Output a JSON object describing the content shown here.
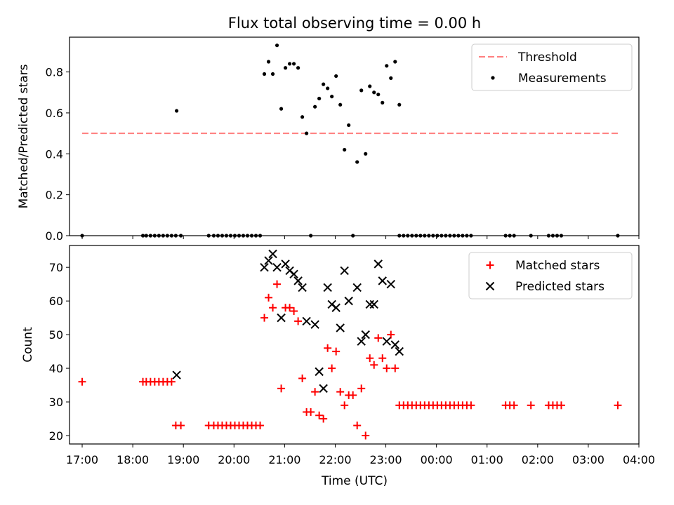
{
  "title": "Flux total observing time = 0.00 h",
  "xlabel": "Time (UTC)",
  "x_ticks": [
    "17:00",
    "18:00",
    "19:00",
    "20:00",
    "21:00",
    "22:00",
    "23:00",
    "00:00",
    "01:00",
    "02:00",
    "03:00",
    "04:00"
  ],
  "chart_data": [
    {
      "type": "scatter",
      "ylabel": "Matched/Predicted stars",
      "ylim": [
        0,
        0.97
      ],
      "y_ticks": [
        0.0,
        0.2,
        0.4,
        0.6,
        0.8
      ],
      "y_tick_labels": [
        "0.0",
        "0.2",
        "0.4",
        "0.6",
        "0.8"
      ],
      "xlim": [
        "16:45",
        "04:00"
      ],
      "legend_position": "top-right",
      "grid": false,
      "series": [
        {
          "name": "Threshold",
          "kind": "dashed-line",
          "color": "#ff7f7f",
          "points": [
            [
              "17:00",
              0.5
            ],
            [
              "03:35",
              0.5
            ]
          ]
        },
        {
          "name": "Measurements",
          "kind": "dots",
          "color": "#000000",
          "points": [
            [
              "17:00",
              0.0
            ],
            [
              "18:12",
              0.0
            ],
            [
              "18:16",
              0.0
            ],
            [
              "18:21",
              0.0
            ],
            [
              "18:26",
              0.0
            ],
            [
              "18:31",
              0.0
            ],
            [
              "18:36",
              0.0
            ],
            [
              "18:41",
              0.0
            ],
            [
              "18:46",
              0.0
            ],
            [
              "18:51",
              0.0
            ],
            [
              "18:52",
              0.61
            ],
            [
              "18:57",
              0.0
            ],
            [
              "19:30",
              0.0
            ],
            [
              "19:36",
              0.0
            ],
            [
              "19:41",
              0.0
            ],
            [
              "19:46",
              0.0
            ],
            [
              "19:51",
              0.0
            ],
            [
              "19:56",
              0.0
            ],
            [
              "20:01",
              0.0
            ],
            [
              "20:06",
              0.0
            ],
            [
              "20:11",
              0.0
            ],
            [
              "20:16",
              0.0
            ],
            [
              "20:21",
              0.0
            ],
            [
              "20:26",
              0.0
            ],
            [
              "20:31",
              0.0
            ],
            [
              "20:36",
              0.79
            ],
            [
              "20:41",
              0.85
            ],
            [
              "20:46",
              0.79
            ],
            [
              "20:51",
              0.93
            ],
            [
              "20:56",
              0.62
            ],
            [
              "21:01",
              0.82
            ],
            [
              "21:06",
              0.84
            ],
            [
              "21:11",
              0.84
            ],
            [
              "21:16",
              0.82
            ],
            [
              "21:21",
              0.58
            ],
            [
              "21:26",
              0.5
            ],
            [
              "21:31",
              0.0
            ],
            [
              "21:36",
              0.63
            ],
            [
              "21:41",
              0.67
            ],
            [
              "21:46",
              0.74
            ],
            [
              "21:51",
              0.72
            ],
            [
              "21:56",
              0.68
            ],
            [
              "22:01",
              0.78
            ],
            [
              "22:06",
              0.64
            ],
            [
              "22:11",
              0.42
            ],
            [
              "22:16",
              0.54
            ],
            [
              "22:21",
              0.0
            ],
            [
              "22:26",
              0.36
            ],
            [
              "22:31",
              0.71
            ],
            [
              "22:36",
              0.4
            ],
            [
              "22:41",
              0.73
            ],
            [
              "22:46",
              0.7
            ],
            [
              "22:51",
              0.69
            ],
            [
              "22:56",
              0.65
            ],
            [
              "23:01",
              0.83
            ],
            [
              "23:06",
              0.77
            ],
            [
              "23:11",
              0.85
            ],
            [
              "23:16",
              0.64
            ],
            [
              "23:16",
              0.0
            ],
            [
              "23:21",
              0.0
            ],
            [
              "23:26",
              0.0
            ],
            [
              "23:31",
              0.0
            ],
            [
              "23:36",
              0.0
            ],
            [
              "23:41",
              0.0
            ],
            [
              "23:46",
              0.0
            ],
            [
              "23:51",
              0.0
            ],
            [
              "23:56",
              0.0
            ],
            [
              "00:01",
              0.0
            ],
            [
              "00:06",
              0.0
            ],
            [
              "00:11",
              0.0
            ],
            [
              "00:16",
              0.0
            ],
            [
              "00:21",
              0.0
            ],
            [
              "00:26",
              0.0
            ],
            [
              "00:31",
              0.0
            ],
            [
              "00:36",
              0.0
            ],
            [
              "00:41",
              0.0
            ],
            [
              "01:22",
              0.0
            ],
            [
              "01:27",
              0.0
            ],
            [
              "01:32",
              0.0
            ],
            [
              "01:52",
              0.0
            ],
            [
              "02:13",
              0.0
            ],
            [
              "02:18",
              0.0
            ],
            [
              "02:23",
              0.0
            ],
            [
              "02:28",
              0.0
            ],
            [
              "03:35",
              0.0
            ]
          ]
        }
      ]
    },
    {
      "type": "scatter",
      "ylabel": "Count",
      "ylim": [
        17.5,
        76.5
      ],
      "y_ticks": [
        20,
        30,
        40,
        50,
        60,
        70
      ],
      "y_tick_labels": [
        "20",
        "30",
        "40",
        "50",
        "60",
        "70"
      ],
      "xlim": [
        "16:45",
        "04:00"
      ],
      "legend_position": "top-right",
      "grid": false,
      "series": [
        {
          "name": "Matched stars",
          "kind": "plus",
          "color": "#ff0000",
          "points": [
            [
              "17:00",
              36
            ],
            [
              "18:12",
              36
            ],
            [
              "18:16",
              36
            ],
            [
              "18:21",
              36
            ],
            [
              "18:26",
              36
            ],
            [
              "18:31",
              36
            ],
            [
              "18:36",
              36
            ],
            [
              "18:41",
              36
            ],
            [
              "18:46",
              36
            ],
            [
              "18:51",
              23
            ],
            [
              "18:57",
              23
            ],
            [
              "19:30",
              23
            ],
            [
              "19:36",
              23
            ],
            [
              "19:41",
              23
            ],
            [
              "19:46",
              23
            ],
            [
              "19:51",
              23
            ],
            [
              "19:56",
              23
            ],
            [
              "20:01",
              23
            ],
            [
              "20:06",
              23
            ],
            [
              "20:11",
              23
            ],
            [
              "20:16",
              23
            ],
            [
              "20:21",
              23
            ],
            [
              "20:26",
              23
            ],
            [
              "20:31",
              23
            ],
            [
              "20:36",
              55
            ],
            [
              "20:41",
              61
            ],
            [
              "20:46",
              58
            ],
            [
              "20:51",
              65
            ],
            [
              "20:56",
              34
            ],
            [
              "21:01",
              58
            ],
            [
              "21:06",
              58
            ],
            [
              "21:11",
              57
            ],
            [
              "21:16",
              54
            ],
            [
              "21:21",
              37
            ],
            [
              "21:26",
              27
            ],
            [
              "21:31",
              27
            ],
            [
              "21:36",
              33
            ],
            [
              "21:41",
              26
            ],
            [
              "21:46",
              25
            ],
            [
              "21:51",
              46
            ],
            [
              "21:56",
              40
            ],
            [
              "22:01",
              45
            ],
            [
              "22:06",
              33
            ],
            [
              "22:11",
              29
            ],
            [
              "22:16",
              32
            ],
            [
              "22:21",
              32
            ],
            [
              "22:26",
              23
            ],
            [
              "22:31",
              34
            ],
            [
              "22:36",
              20
            ],
            [
              "22:41",
              43
            ],
            [
              "22:46",
              41
            ],
            [
              "22:51",
              49
            ],
            [
              "22:56",
              43
            ],
            [
              "23:01",
              40
            ],
            [
              "23:06",
              50
            ],
            [
              "23:11",
              40
            ],
            [
              "23:16",
              29
            ],
            [
              "23:21",
              29
            ],
            [
              "23:26",
              29
            ],
            [
              "23:31",
              29
            ],
            [
              "23:36",
              29
            ],
            [
              "23:41",
              29
            ],
            [
              "23:46",
              29
            ],
            [
              "23:51",
              29
            ],
            [
              "23:56",
              29
            ],
            [
              "00:01",
              29
            ],
            [
              "00:06",
              29
            ],
            [
              "00:11",
              29
            ],
            [
              "00:16",
              29
            ],
            [
              "00:21",
              29
            ],
            [
              "00:26",
              29
            ],
            [
              "00:31",
              29
            ],
            [
              "00:36",
              29
            ],
            [
              "00:41",
              29
            ],
            [
              "01:22",
              29
            ],
            [
              "01:27",
              29
            ],
            [
              "01:32",
              29
            ],
            [
              "01:52",
              29
            ],
            [
              "02:13",
              29
            ],
            [
              "02:18",
              29
            ],
            [
              "02:23",
              29
            ],
            [
              "02:28",
              29
            ],
            [
              "03:35",
              29
            ]
          ]
        },
        {
          "name": "Predicted stars",
          "kind": "cross",
          "color": "#000000",
          "points": [
            [
              "18:52",
              38
            ],
            [
              "20:36",
              70
            ],
            [
              "20:41",
              72
            ],
            [
              "20:46",
              74
            ],
            [
              "20:51",
              70
            ],
            [
              "20:56",
              55
            ],
            [
              "21:01",
              71
            ],
            [
              "21:06",
              69
            ],
            [
              "21:11",
              68
            ],
            [
              "21:16",
              66
            ],
            [
              "21:21",
              64
            ],
            [
              "21:26",
              54
            ],
            [
              "21:36",
              53
            ],
            [
              "21:41",
              39
            ],
            [
              "21:46",
              34
            ],
            [
              "21:51",
              64
            ],
            [
              "21:56",
              59
            ],
            [
              "22:01",
              58
            ],
            [
              "22:06",
              52
            ],
            [
              "22:11",
              69
            ],
            [
              "22:16",
              60
            ],
            [
              "22:26",
              64
            ],
            [
              "22:31",
              48
            ],
            [
              "22:36",
              50
            ],
            [
              "22:41",
              59
            ],
            [
              "22:46",
              59
            ],
            [
              "22:51",
              71
            ],
            [
              "22:56",
              66
            ],
            [
              "23:01",
              48
            ],
            [
              "23:06",
              65
            ],
            [
              "23:11",
              47
            ],
            [
              "23:16",
              45
            ]
          ]
        }
      ]
    }
  ]
}
